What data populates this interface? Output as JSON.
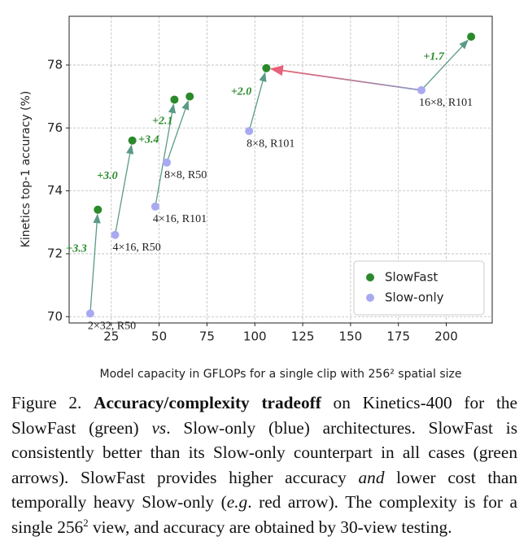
{
  "chart_data": {
    "type": "scatter",
    "xlabel": "Model capacity in GFLOPs for a single clip with 256² spatial size",
    "ylabel": "Kinetics top-1 accuracy (%)",
    "xlim": [
      3,
      224
    ],
    "ylim": [
      69.8,
      79.55
    ],
    "xticks": [
      25,
      50,
      75,
      100,
      125,
      150,
      175,
      200
    ],
    "yticks": [
      70,
      72,
      74,
      76,
      78
    ],
    "grid": true,
    "legend": "lower right",
    "series": [
      {
        "name": "SlowFast",
        "color": "#2a8a2a",
        "x": [
          18,
          36,
          58,
          66,
          106,
          213
        ],
        "values": [
          73.4,
          75.6,
          76.9,
          77.0,
          77.9,
          78.9
        ]
      },
      {
        "name": "Slow-only",
        "color": "#a9a9f2",
        "x": [
          14,
          27,
          48,
          54,
          97,
          187
        ],
        "values": [
          70.1,
          72.6,
          73.5,
          74.9,
          75.9,
          77.2
        ],
        "point_labels": [
          "2×32, R50",
          "4×16, R50",
          "4×16, R101",
          "8×8, R50",
          "8×8, R101",
          "16×8, R101"
        ]
      }
    ],
    "gain_labels": [
      "+3.3",
      "+3.0",
      "+3.4",
      "+2.1",
      "+2.0",
      "+1.7"
    ]
  },
  "caption": [
    {
      "text": "Figure 2. ",
      "style": "normal"
    },
    {
      "text": "Accuracy/complexity tradeoff",
      "style": "bold"
    },
    {
      "text": " on Kinetics-400 for the SlowFast (green) ",
      "style": "normal"
    },
    {
      "text": "vs",
      "style": "italic"
    },
    {
      "text": ". Slow-only (blue) architectures. SlowFast is consistently better than its Slow-only counterpart in all cases (green arrows). SlowFast provides higher accuracy ",
      "style": "normal"
    },
    {
      "text": "and",
      "style": "italic"
    },
    {
      "text": " lower cost than temporally heavy Slow-only (",
      "style": "normal"
    },
    {
      "text": "e.g",
      "style": "italic"
    },
    {
      "text": ". red arrow). The complexity is for a single 256",
      "style": "normal"
    },
    {
      "text": "2",
      "style": "sup"
    },
    {
      "text": " view, and accuracy are obtained by 30-view testing.",
      "style": "normal"
    }
  ]
}
